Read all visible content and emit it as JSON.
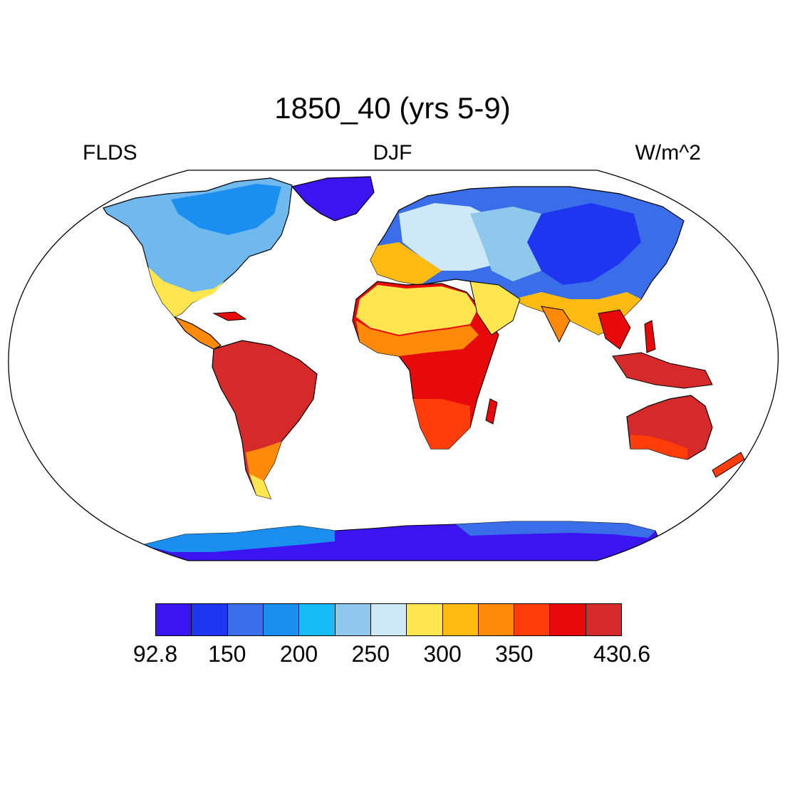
{
  "title": "1850_40 (yrs 5-9)",
  "left_label": "FLDS",
  "center_label": "DJF",
  "right_label": "W/m^2",
  "colorbar": {
    "colors": [
      "#3b15f0",
      "#1f36f0",
      "#3a6ee8",
      "#1b8ff0",
      "#16bcf5",
      "#8fc8ed",
      "#cde8f7",
      "#ffe54f",
      "#ffbb12",
      "#ff8a0a",
      "#ff3d0a",
      "#e80a0a",
      "#d62a2a"
    ],
    "labels": [
      {
        "text": "92.8",
        "pos": 0
      },
      {
        "text": "150",
        "pos": 2
      },
      {
        "text": "200",
        "pos": 4
      },
      {
        "text": "250",
        "pos": 6
      },
      {
        "text": "300",
        "pos": 8
      },
      {
        "text": "350",
        "pos": 10
      },
      {
        "text": "430.6",
        "pos": 13
      }
    ]
  }
}
